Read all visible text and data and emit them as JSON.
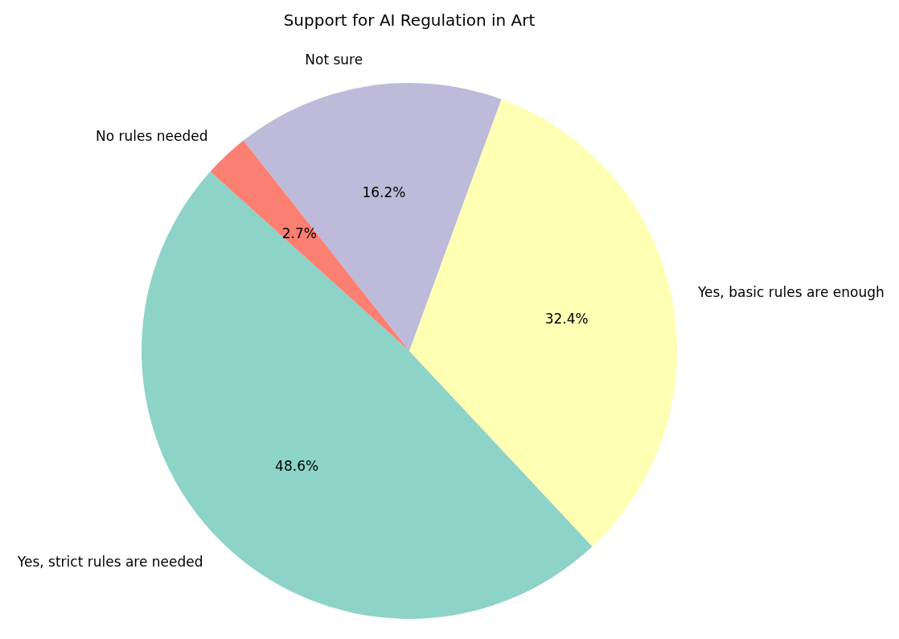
{
  "chart_data": {
    "type": "pie",
    "title": "Support for AI Regulation in Art",
    "categories": [
      "Yes, strict rules are needed",
      "Yes, basic rules are enough",
      "Not sure",
      "No rules needed"
    ],
    "values": [
      48.6,
      32.4,
      16.2,
      2.7
    ],
    "colors": [
      "#8dd3c7",
      "#ffffb3",
      "#bebada",
      "#fb8072"
    ],
    "value_labels": [
      "48.6%",
      "32.4%",
      "16.2%",
      "2.7%"
    ]
  }
}
